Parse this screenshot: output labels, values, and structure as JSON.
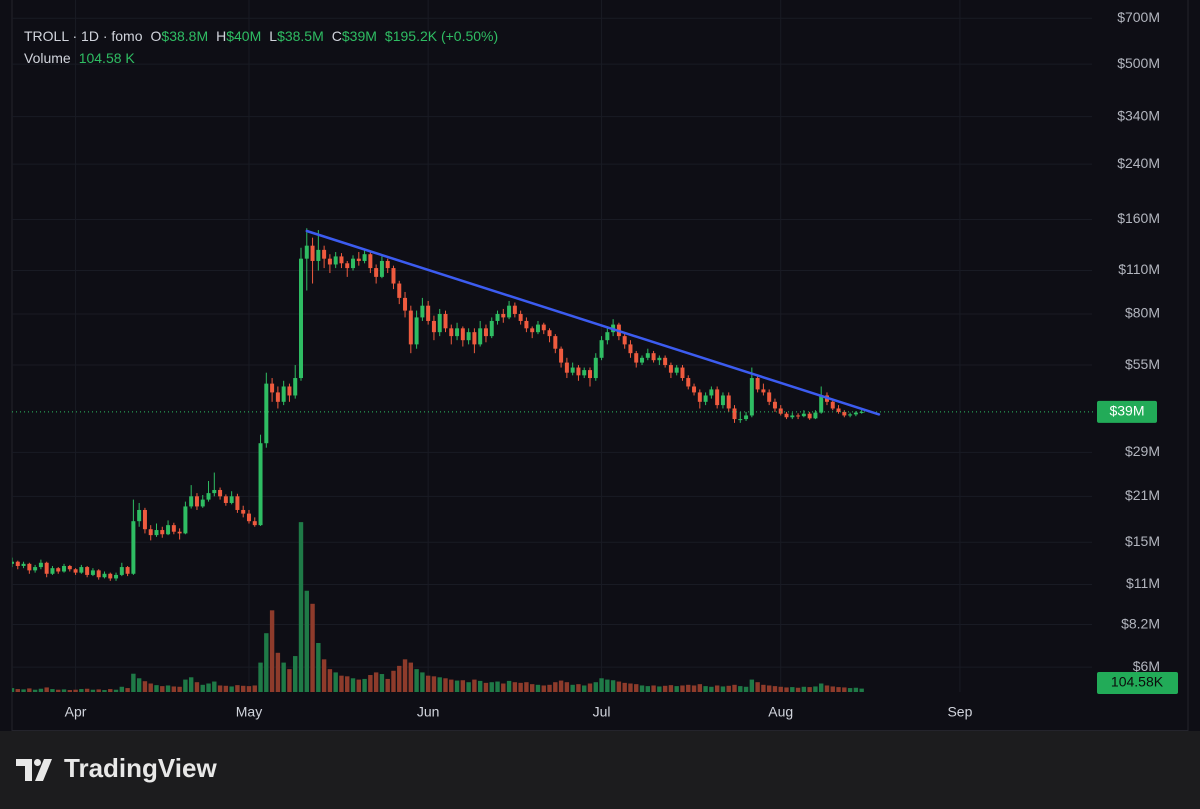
{
  "chart_data": {
    "type": "candlestick",
    "header": {
      "symbol": "TROLL · 1D · fomo",
      "fields": [
        {
          "label": "O",
          "value": "$38.8M"
        },
        {
          "label": "H",
          "value": "$40M"
        },
        {
          "label": "L",
          "value": "$38.5M"
        },
        {
          "label": "C",
          "value": "$39M"
        }
      ],
      "change": "$195.2K (+0.50%)",
      "volume_label": "Volume",
      "volume_value": "104.58 K"
    },
    "last_price_label": "$39M",
    "last_volume_label": "104.58K",
    "categories": [
      null,
      null,
      null,
      null,
      null,
      null,
      null,
      null,
      null,
      null,
      null,
      "Apr",
      null,
      null,
      null,
      null,
      null,
      null,
      null,
      null,
      null,
      null,
      null,
      null,
      null,
      null,
      null,
      null,
      null,
      null,
      null,
      null,
      null,
      null,
      null,
      null,
      null,
      null,
      null,
      null,
      null,
      "May",
      null,
      null,
      null,
      null,
      null,
      null,
      null,
      null,
      null,
      null,
      null,
      null,
      null,
      null,
      null,
      null,
      null,
      null,
      null,
      null,
      null,
      null,
      null,
      null,
      null,
      null,
      null,
      null,
      null,
      null,
      "Jun",
      null,
      null,
      null,
      null,
      null,
      null,
      null,
      null,
      null,
      null,
      null,
      null,
      null,
      null,
      null,
      null,
      null,
      null,
      null,
      null,
      null,
      null,
      null,
      null,
      null,
      null,
      null,
      null,
      null,
      "Jul",
      null,
      null,
      null,
      null,
      null,
      null,
      null,
      null,
      null,
      null,
      null,
      null,
      null,
      null,
      null,
      null,
      null,
      null,
      null,
      null,
      null,
      null,
      null,
      null,
      null,
      null,
      null,
      null,
      null,
      null,
      "Aug",
      null,
      null,
      null,
      null,
      null,
      null,
      null,
      null,
      null,
      null,
      null,
      null,
      null,
      null,
      null,
      null,
      null,
      null,
      null,
      null,
      null,
      null,
      null,
      null,
      null,
      null,
      null,
      null,
      null,
      null,
      "Sep"
    ],
    "open": [
      12.8,
      13.0,
      12.6,
      12.8,
      12.2,
      12.5,
      12.9,
      11.9,
      12.4,
      12.1,
      12.6,
      12.3,
      12.0,
      12.5,
      11.8,
      12.2,
      11.6,
      11.9,
      11.5,
      11.8,
      12.5,
      11.9,
      17.5,
      19.0,
      16.5,
      15.8,
      16.4,
      15.9,
      17.0,
      16.2,
      16.0,
      19.5,
      21.0,
      19.5,
      20.5,
      21.5,
      22.0,
      21.0,
      20.0,
      21.0,
      19.0,
      18.5,
      17.5,
      17.0,
      31.0,
      48.0,
      45.0,
      42.0,
      47.0,
      44.0,
      50,
      120,
      132,
      118,
      128,
      120,
      115,
      122,
      116,
      112,
      120,
      118,
      124,
      112,
      105,
      118,
      112,
      100,
      90,
      82,
      64,
      78,
      85,
      76,
      70,
      80,
      72,
      68,
      72,
      66,
      70,
      64,
      72,
      68,
      76,
      80,
      78,
      85,
      80,
      76,
      72,
      70,
      74,
      71,
      68,
      62,
      56,
      52,
      54,
      51,
      53,
      50,
      58,
      66,
      70,
      74,
      68,
      64,
      60,
      56,
      58,
      60,
      57,
      58,
      55,
      52,
      54,
      50,
      47,
      45,
      42,
      44,
      46,
      41,
      44,
      40,
      37,
      37,
      38,
      50,
      46,
      45,
      42,
      40,
      38.5,
      37.5,
      38,
      37.8,
      38.5,
      37.2,
      38.8,
      44,
      42,
      40,
      39,
      38,
      38.3,
      38.8,
      null,
      null,
      null,
      null,
      null,
      null,
      null,
      null,
      null,
      null,
      null,
      null,
      null,
      null,
      null,
      null,
      null
    ],
    "high": [
      13.4,
      13.1,
      13.0,
      12.9,
      12.7,
      13.2,
      13.0,
      12.6,
      12.5,
      12.8,
      12.7,
      12.4,
      12.7,
      12.6,
      12.4,
      12.3,
      12.1,
      12.0,
      12.0,
      12.9,
      12.6,
      20.5,
      20.0,
      19.3,
      17.0,
      17.2,
      16.8,
      17.6,
      17.3,
      16.6,
      20.2,
      22.8,
      21.5,
      21.2,
      23.5,
      25.0,
      22.4,
      21.3,
      21.8,
      21.4,
      19.6,
      19.0,
      18.0,
      33.0,
      52.0,
      50.0,
      47.0,
      49.0,
      48.0,
      55.0,
      130,
      150,
      140,
      148,
      132,
      124,
      126,
      125,
      118,
      123,
      126,
      128,
      126,
      115,
      122,
      120,
      114,
      102,
      94,
      85,
      82,
      90,
      88,
      79,
      83,
      82,
      74,
      75,
      73,
      72,
      72,
      76,
      74,
      78,
      82,
      83,
      88,
      87,
      82,
      78,
      73,
      76,
      75,
      72,
      69,
      63,
      58,
      56,
      55,
      54,
      54,
      60,
      68,
      73,
      77,
      75,
      70,
      66,
      61,
      59,
      62,
      61,
      59,
      59,
      56,
      55,
      55,
      51,
      48,
      46,
      45,
      47,
      47,
      45,
      45,
      41,
      39,
      39,
      54,
      51,
      48,
      46,
      43,
      41,
      39,
      38.8,
      38.6,
      39.5,
      39,
      39.5,
      47,
      45,
      43,
      41,
      39.5,
      38.8,
      39.2,
      40,
      null,
      null,
      null,
      null,
      null,
      null,
      null,
      null,
      null,
      null,
      null,
      null,
      null,
      null,
      null,
      null,
      null
    ],
    "low": [
      12.5,
      12.3,
      12.4,
      11.9,
      12.0,
      12.3,
      11.6,
      11.8,
      11.9,
      12.0,
      12.1,
      11.8,
      11.9,
      11.6,
      11.7,
      11.4,
      11.5,
      11.3,
      11.3,
      11.7,
      11.7,
      11.8,
      16.8,
      16.0,
      15.2,
      15.6,
      15.5,
      15.8,
      15.9,
      15.3,
      15.9,
      19.2,
      19.0,
      19.3,
      20.2,
      21.0,
      20.5,
      19.6,
      19.8,
      18.6,
      18.0,
      17.2,
      16.8,
      16.9,
      30.0,
      42.0,
      40.0,
      41.0,
      42.0,
      43.0,
      49,
      95,
      100,
      110,
      112,
      108,
      112,
      112,
      105,
      110,
      114,
      116,
      108,
      100,
      104,
      108,
      96,
      86,
      78,
      60,
      62,
      76,
      74,
      66,
      68,
      70,
      64,
      66,
      63,
      64,
      60,
      63,
      65,
      67,
      74,
      75,
      77,
      78,
      74,
      70,
      67,
      69,
      69,
      65,
      60,
      54,
      50,
      51,
      49,
      50,
      47,
      49,
      57,
      64,
      68,
      66,
      62,
      58,
      54,
      55,
      57,
      56,
      55,
      54,
      50,
      51,
      49,
      46,
      44,
      40,
      41,
      43,
      40,
      40,
      39,
      36,
      36,
      36.5,
      37.5,
      45,
      44,
      41,
      39,
      38,
      37,
      37,
      37,
      37.5,
      36.8,
      37,
      38.5,
      41,
      39.5,
      38.5,
      37.5,
      37.5,
      37.8,
      38.5,
      null,
      null,
      null,
      null,
      null,
      null,
      null,
      null,
      null,
      null,
      null,
      null,
      null,
      null,
      null,
      null,
      null
    ],
    "close": [
      13.0,
      12.6,
      12.8,
      12.2,
      12.5,
      12.9,
      11.9,
      12.4,
      12.1,
      12.6,
      12.3,
      12.0,
      12.5,
      11.8,
      12.2,
      11.6,
      11.9,
      11.5,
      11.8,
      12.5,
      11.9,
      17.5,
      19.0,
      16.5,
      15.8,
      16.4,
      15.9,
      17.0,
      16.2,
      16.0,
      19.5,
      21.0,
      19.5,
      20.5,
      21.5,
      22.0,
      21.0,
      20.0,
      21.0,
      19.0,
      18.5,
      17.5,
      17.0,
      31.0,
      48.0,
      45.0,
      42.0,
      47.0,
      44.0,
      50.0,
      120,
      132,
      118,
      128,
      120,
      115,
      122,
      116,
      112,
      120,
      118,
      124,
      112,
      105,
      118,
      112,
      100,
      90,
      82,
      64,
      78,
      85,
      76,
      70,
      80,
      72,
      68,
      72,
      66,
      70,
      64,
      72,
      68,
      76,
      80,
      78,
      85,
      80,
      76,
      72,
      70,
      74,
      71,
      68,
      62,
      56,
      52,
      54,
      51,
      53,
      50,
      58,
      66,
      70,
      74,
      68,
      64,
      60,
      56,
      58,
      60,
      57,
      58,
      55,
      52,
      54,
      50,
      47,
      45,
      42,
      44,
      46,
      41,
      44,
      40,
      37,
      37,
      38,
      50,
      46,
      45,
      42,
      40,
      38.5,
      37.5,
      38,
      37.8,
      38.5,
      37.2,
      38.8,
      44,
      42,
      40,
      39,
      38,
      38.3,
      38.8,
      39,
      null,
      null,
      null,
      null,
      null,
      null,
      null,
      null,
      null,
      null,
      null,
      null,
      null,
      null,
      null,
      null,
      null
    ],
    "volume": [
      120,
      90,
      80,
      110,
      70,
      100,
      140,
      90,
      70,
      80,
      60,
      70,
      90,
      100,
      70,
      80,
      60,
      90,
      70,
      160,
      120,
      560,
      420,
      330,
      260,
      210,
      180,
      200,
      170,
      160,
      380,
      450,
      300,
      220,
      260,
      320,
      200,
      190,
      170,
      210,
      190,
      180,
      200,
      900,
      1800,
      2500,
      1200,
      900,
      700,
      1100,
      5200,
      3100,
      2700,
      1500,
      1000,
      700,
      600,
      500,
      480,
      420,
      380,
      400,
      520,
      600,
      550,
      400,
      650,
      800,
      1000,
      900,
      700,
      600,
      500,
      480,
      450,
      420,
      380,
      350,
      360,
      300,
      380,
      340,
      280,
      300,
      320,
      260,
      340,
      300,
      280,
      300,
      240,
      220,
      200,
      220,
      300,
      350,
      300,
      220,
      240,
      200,
      260,
      300,
      420,
      380,
      360,
      320,
      280,
      260,
      240,
      200,
      180,
      200,
      170,
      190,
      210,
      180,
      200,
      220,
      200,
      240,
      180,
      160,
      200,
      170,
      190,
      220,
      180,
      160,
      380,
      300,
      220,
      200,
      180,
      160,
      140,
      150,
      130,
      160,
      150,
      170,
      260,
      200,
      170,
      150,
      140,
      120,
      130,
      104.58,
      null,
      null,
      null,
      null,
      null,
      null,
      null,
      null,
      null,
      null,
      null,
      null,
      null,
      null,
      null,
      null,
      null
    ],
    "ylim": [
      5,
      800
    ],
    "log_scale": true,
    "yticks": [
      {
        "value": 700,
        "label": "$700M"
      },
      {
        "value": 500,
        "label": "$500M"
      },
      {
        "value": 340,
        "label": "$340M"
      },
      {
        "value": 240,
        "label": "$240M"
      },
      {
        "value": 160,
        "label": "$160M"
      },
      {
        "value": 110,
        "label": "$110M"
      },
      {
        "value": 80,
        "label": "$80M"
      },
      {
        "value": 55,
        "label": "$55M"
      },
      {
        "value": 29,
        "label": "$29M"
      },
      {
        "value": 21,
        "label": "$21M"
      },
      {
        "value": 15,
        "label": "$15M"
      },
      {
        "value": 11,
        "label": "$11M"
      },
      {
        "value": 8.2,
        "label": "$8.2M"
      },
      {
        "value": 6,
        "label": "$6M"
      }
    ],
    "volume_lim": [
      0,
      6000
    ],
    "grid": true,
    "up_color": "#2fbd63",
    "down_color": "#ef5b3f",
    "volume_up_color": "#1f7a47",
    "volume_down_color": "#8e3b2b",
    "trendline": {
      "color": "#3c5cf0",
      "start": {
        "index": 51,
        "value": 147
      },
      "end": {
        "index": 150,
        "value": 38.3
      }
    }
  },
  "branding": "TradingView"
}
